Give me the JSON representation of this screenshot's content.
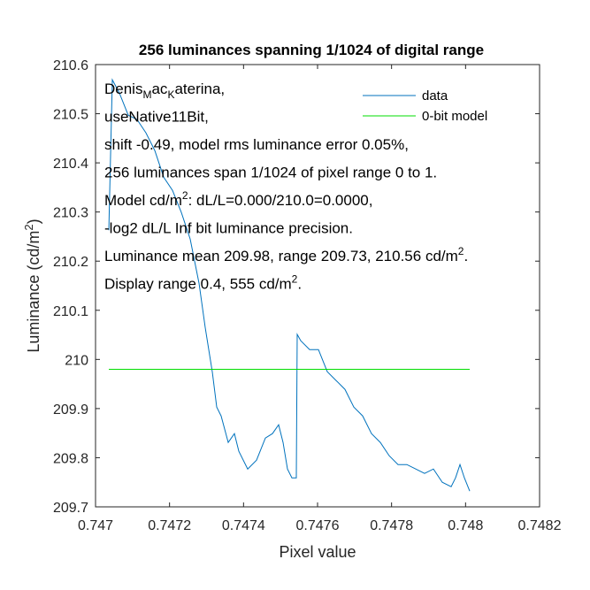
{
  "chart_data": {
    "type": "line",
    "title": "256 luminances spanning 1/1024 of digital range",
    "xlabel": "Pixel value",
    "ylabel": [
      {
        "text": "Luminance (cd/m"
      },
      {
        "text": "2",
        "script": "super"
      },
      {
        "text": ")"
      }
    ],
    "xlim": [
      0.747,
      0.7482
    ],
    "xticks": [
      0.747,
      0.7472,
      0.7474,
      0.7476,
      0.7478,
      0.748,
      0.7482
    ],
    "ylim": [
      209.7,
      210.6
    ],
    "yticks": [
      209.7,
      209.8,
      209.9,
      210,
      210.1,
      210.2,
      210.3,
      210.4,
      210.5,
      210.6
    ],
    "legend": "upper right",
    "series": [
      {
        "name": "data",
        "color": "#0072bd",
        "x": [
          0.7470359,
          0.7470454,
          0.7470645,
          0.7470884,
          0.7471124,
          0.7471363,
          0.7471602,
          0.7471841,
          0.747208,
          0.7472319,
          0.7472558,
          0.7472797,
          0.7472964,
          0.7473155,
          0.7473275,
          0.7473394,
          0.7473586,
          0.7473753,
          0.7473873,
          0.7474112,
          0.7474351,
          0.747459,
          0.7474781,
          0.7474948,
          0.7475068,
          0.7475187,
          0.7475307,
          0.7475426,
          0.747545,
          0.7475546,
          0.7475785,
          0.7476024,
          0.7476263,
          0.7476502,
          0.7476741,
          0.747698,
          0.7477219,
          0.7477458,
          0.7477697,
          0.7477936,
          0.7478175,
          0.7478414,
          0.7478653,
          0.7478892,
          0.7479131,
          0.7479371,
          0.747961,
          0.7479729,
          0.7479849,
          0.7479968,
          0.7480112
        ],
        "values": [
          210.263,
          210.569,
          210.542,
          210.497,
          210.488,
          210.461,
          210.425,
          210.371,
          210.344,
          210.299,
          210.245,
          210.155,
          210.065,
          209.975,
          209.903,
          209.885,
          209.831,
          209.849,
          209.813,
          209.777,
          209.795,
          209.84,
          209.849,
          209.867,
          209.831,
          209.777,
          209.759,
          209.759,
          210.051,
          210.038,
          210.02,
          210.02,
          209.975,
          209.957,
          209.939,
          209.903,
          209.885,
          209.849,
          209.831,
          209.804,
          209.786,
          209.786,
          209.777,
          209.768,
          209.777,
          209.75,
          209.741,
          209.759,
          209.786,
          209.759,
          209.732
        ]
      },
      {
        "name": "0-bit model",
        "color": "#00dd00",
        "x": [
          0.7470359,
          0.7480112
        ],
        "values": [
          209.98,
          209.98
        ]
      }
    ],
    "annotations": [
      [
        {
          "text": "Denis"
        },
        {
          "text": "M",
          "script": "sub"
        },
        {
          "text": "ac"
        },
        {
          "text": "K",
          "script": "sub"
        },
        {
          "text": "aterina,"
        }
      ],
      [
        {
          "text": "useNative11Bit,"
        }
      ],
      [
        {
          "text": "shift -0.49, model rms luminance error 0.05%,"
        }
      ],
      [
        {
          "text": "256 luminances span 1/1024 of pixel range 0 to 1."
        }
      ],
      [
        {
          "text": "Model cd/m"
        },
        {
          "text": "2",
          "script": "super"
        },
        {
          "text": ": dL/L=0.000/210.0=0.0000,"
        }
      ],
      [
        {
          "text": "-log2 dL/L Inf bit luminance precision."
        }
      ],
      [
        {
          "text": "Luminance mean 209.98, range 209.73, 210.56 cd/m"
        },
        {
          "text": "2",
          "script": "super"
        },
        {
          "text": "."
        }
      ],
      [
        {
          "text": "Display range 0.4, 555 cd/m"
        },
        {
          "text": "2",
          "script": "super"
        },
        {
          "text": "."
        }
      ]
    ]
  }
}
